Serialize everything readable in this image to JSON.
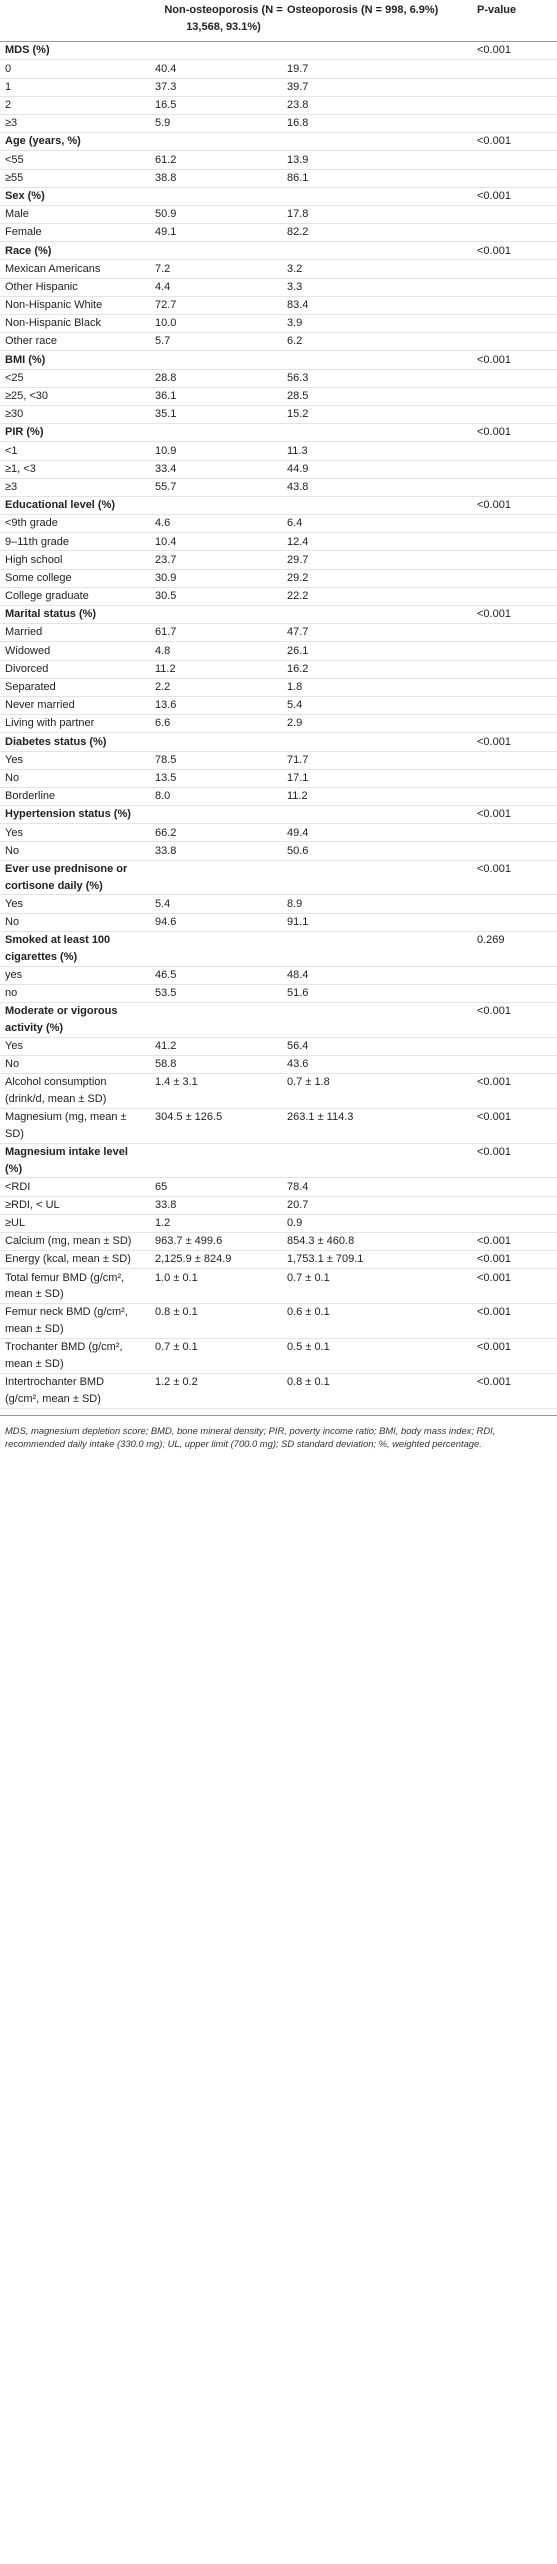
{
  "table": {
    "header": [
      "Non-osteoporosis (N = 13,568, 93.1%)",
      "Osteoporosis (N = 998, 6.9%)",
      "P-value"
    ],
    "rows": [
      {
        "bold": true,
        "cells": [
          "MDS (%)",
          "<0.001"
        ]
      },
      {
        "cells": [
          "0",
          "40.4",
          "19.7"
        ]
      },
      {
        "cells": [
          "1",
          "37.3",
          "39.7"
        ]
      },
      {
        "cells": [
          "2",
          "16.5",
          "23.8"
        ]
      },
      {
        "cells": [
          "≥3",
          "5.9",
          "16.8"
        ]
      },
      {
        "bold": true,
        "cells": [
          "Age (years, %)",
          "<0.001"
        ]
      },
      {
        "cells": [
          "<55",
          "61.2",
          "13.9"
        ]
      },
      {
        "cells": [
          "≥55",
          "38.8",
          "86.1"
        ]
      },
      {
        "bold": true,
        "cells": [
          "Sex (%)",
          "<0.001"
        ]
      },
      {
        "cells": [
          "Male",
          "50.9",
          "17.8"
        ]
      },
      {
        "cells": [
          "Female",
          "49.1",
          "82.2"
        ]
      },
      {
        "bold": true,
        "cells": [
          "Race (%)",
          "<0.001"
        ]
      },
      {
        "cells": [
          "Mexican Americans",
          "7.2",
          "3.2"
        ]
      },
      {
        "cells": [
          "Other Hispanic",
          "4.4",
          "3.3"
        ]
      },
      {
        "cells": [
          "Non-Hispanic White",
          "72.7",
          "83.4"
        ]
      },
      {
        "cells": [
          "Non-Hispanic Black",
          "10.0",
          "3.9"
        ]
      },
      {
        "cells": [
          "Other race",
          "5.7",
          "6.2"
        ]
      },
      {
        "bold": true,
        "cells": [
          "BMI (%)",
          "<0.001"
        ]
      },
      {
        "cells": [
          "<25",
          "28.8",
          "56.3"
        ]
      },
      {
        "cells": [
          "≥25, <30",
          "36.1",
          "28.5"
        ]
      },
      {
        "cells": [
          "≥30",
          "35.1",
          "15.2"
        ]
      },
      {
        "bold": true,
        "cells": [
          "PIR (%)",
          "<0.001"
        ]
      },
      {
        "cells": [
          "<1",
          "10.9",
          "11.3"
        ]
      },
      {
        "cells": [
          "≥1, <3",
          "33.4",
          "44.9"
        ]
      },
      {
        "cells": [
          "≥3",
          "55.7",
          "43.8"
        ]
      },
      {
        "bold": true,
        "cells": [
          "Educational level (%)",
          "<0.001"
        ]
      },
      {
        "cells": [
          "<9th grade",
          "4.6",
          "6.4"
        ]
      },
      {
        "cells": [
          "9–11th grade",
          "10.4",
          "12.4"
        ]
      },
      {
        "cells": [
          "High school",
          "23.7",
          "29.7"
        ]
      },
      {
        "cells": [
          "Some college",
          "30.9",
          "29.2"
        ]
      },
      {
        "cells": [
          "College graduate",
          "30.5",
          "22.2"
        ]
      },
      {
        "bold": true,
        "cells": [
          "Marital status (%)",
          "<0.001"
        ]
      },
      {
        "cells": [
          "Married",
          "61.7",
          "47.7"
        ]
      },
      {
        "cells": [
          "Widowed",
          "4.8",
          "26.1"
        ]
      },
      {
        "cells": [
          "Divorced",
          "11.2",
          "16.2"
        ]
      },
      {
        "cells": [
          "Separated",
          "2.2",
          "1.8"
        ]
      },
      {
        "cells": [
          "Never married",
          "13.6",
          "5.4"
        ]
      },
      {
        "cells": [
          "Living with partner",
          "6.6",
          "2.9"
        ]
      },
      {
        "bold": true,
        "cells": [
          "Diabetes status (%)",
          "<0.001"
        ]
      },
      {
        "cells": [
          "Yes",
          "78.5",
          "71.7"
        ]
      },
      {
        "cells": [
          "No",
          "13.5",
          "17.1"
        ]
      },
      {
        "cells": [
          "Borderline",
          "8.0",
          "11.2"
        ]
      },
      {
        "bold": true,
        "cells": [
          "Hypertension status (%)",
          "<0.001"
        ]
      },
      {
        "cells": [
          "Yes",
          "66.2",
          "49.4"
        ]
      },
      {
        "cells": [
          "No",
          "33.8",
          "50.6"
        ]
      },
      {
        "bold": true,
        "cells": [
          "Ever use prednisone or cortisone daily (%)",
          "<0.001"
        ]
      },
      {
        "cells": [
          "Yes",
          "5.4",
          "8.9"
        ]
      },
      {
        "cells": [
          "No",
          "94.6",
          "91.1"
        ]
      },
      {
        "bold": true,
        "cells": [
          "Smoked at least 100 cigarettes (%)",
          "0.269"
        ]
      },
      {
        "cells": [
          "yes",
          "46.5",
          "48.4"
        ]
      },
      {
        "cells": [
          "no",
          "53.5",
          "51.6"
        ]
      },
      {
        "bold": true,
        "cells": [
          "Moderate or vigorous activity (%)",
          "<0.001"
        ]
      },
      {
        "cells": [
          "Yes",
          "41.2",
          "56.4"
        ]
      },
      {
        "cells": [
          "No",
          "58.8",
          "43.6"
        ]
      },
      {
        "cells": [
          "Alcohol consumption (drink/d, mean ± SD)",
          "1.4 ± 3.1",
          "0.7 ± 1.8",
          "<0.001"
        ]
      },
      {
        "cells": [
          "Magnesium (mg, mean ± SD)",
          "304.5 ± 126.5",
          "263.1 ± 114.3",
          "<0.001"
        ]
      },
      {
        "bold": true,
        "cells": [
          "Magnesium intake level (%)",
          "<0.001"
        ]
      },
      {
        "cells": [
          "<RDI",
          "65",
          "78.4"
        ]
      },
      {
        "cells": [
          "≥RDI, < UL",
          "33.8",
          "20.7"
        ]
      },
      {
        "cells": [
          "≥UL",
          "1.2",
          "0.9"
        ]
      },
      {
        "cells": [
          "Calcium (mg, mean ± SD)",
          "963.7 ± 499.6",
          "854.3 ± 460.8",
          "<0.001"
        ]
      },
      {
        "cells": [
          "Energy (kcal, mean ± SD)",
          "2,125.9 ± 824.9",
          "1,753.1 ± 709.1",
          "<0.001"
        ]
      },
      {
        "cells": [
          "Total femur BMD (g/cm², mean ± SD)",
          "1.0 ± 0.1",
          "0.7 ± 0.1",
          "<0.001"
        ]
      },
      {
        "cells": [
          "Femur neck BMD (g/cm², mean ± SD)",
          "0.8 ± 0.1",
          "0.6 ± 0.1",
          "<0.001"
        ]
      },
      {
        "cells": [
          "Trochanter BMD (g/cm², mean ± SD)",
          "0.7 ± 0.1",
          "0.5 ± 0.1",
          "<0.001"
        ]
      },
      {
        "cells": [
          "Intertrochanter BMD (g/cm², mean ± SD)",
          "1.2 ± 0.2",
          "0.8 ± 0.1",
          "<0.001"
        ]
      }
    ],
    "footnote": "MDS, magnesium depletion score; BMD, bone mineral density; PIR, poverty income ratio; BMI, body mass index; RDI, recommended daily intake (330.0 mg); UL, upper limit (700.0 mg); SD standard deviation; %, weighted percentage."
  }
}
